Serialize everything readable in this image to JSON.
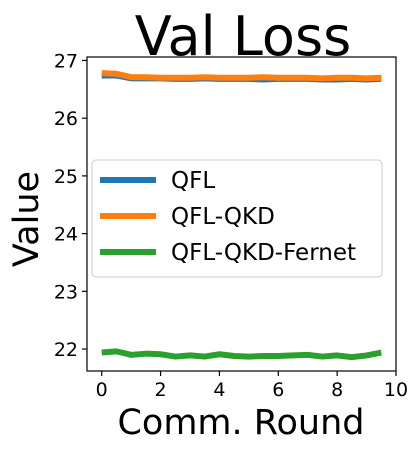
{
  "chart_data": {
    "type": "line",
    "title": "Val Loss",
    "xlabel": "Comm. Round",
    "ylabel": "Value",
    "xlim": [
      -0.5,
      10
    ],
    "ylim": [
      21.62,
      27.06
    ],
    "xticks": [
      0,
      2,
      4,
      6,
      8,
      10
    ],
    "xtick_labels": [
      "0",
      "2",
      "4",
      "6",
      "8",
      "10"
    ],
    "yticks": [
      22,
      23,
      24,
      25,
      26,
      27
    ],
    "ytick_labels": [
      "22",
      "23",
      "24",
      "25",
      "26",
      "27"
    ],
    "grid": false,
    "legend_position": "center-left",
    "x": [
      0,
      0.5,
      1,
      1.5,
      2,
      2.5,
      3,
      3.5,
      4,
      4.5,
      5,
      5.5,
      6,
      6.5,
      7,
      7.5,
      8,
      8.5,
      9,
      9.5
    ],
    "series": [
      {
        "name": "QFL",
        "color": "#1f77b4",
        "values": [
          26.74,
          26.74,
          26.69,
          26.69,
          26.69,
          26.68,
          26.68,
          26.69,
          26.68,
          26.68,
          26.68,
          26.67,
          26.68,
          26.68,
          26.68,
          26.67,
          26.67,
          26.68,
          26.67,
          26.68
        ]
      },
      {
        "name": "QFL-QKD",
        "color": "#ff7f0e",
        "values": [
          26.78,
          26.77,
          26.71,
          26.71,
          26.7,
          26.7,
          26.7,
          26.71,
          26.7,
          26.7,
          26.7,
          26.71,
          26.7,
          26.7,
          26.7,
          26.69,
          26.7,
          26.7,
          26.69,
          26.7
        ]
      },
      {
        "name": "QFL-QKD-Fernet",
        "color": "#2ca02c",
        "values": [
          21.94,
          21.96,
          21.9,
          21.92,
          21.91,
          21.87,
          21.89,
          21.87,
          21.91,
          21.88,
          21.87,
          21.88,
          21.88,
          21.89,
          21.9,
          21.87,
          21.89,
          21.86,
          21.89,
          21.94
        ]
      }
    ]
  }
}
